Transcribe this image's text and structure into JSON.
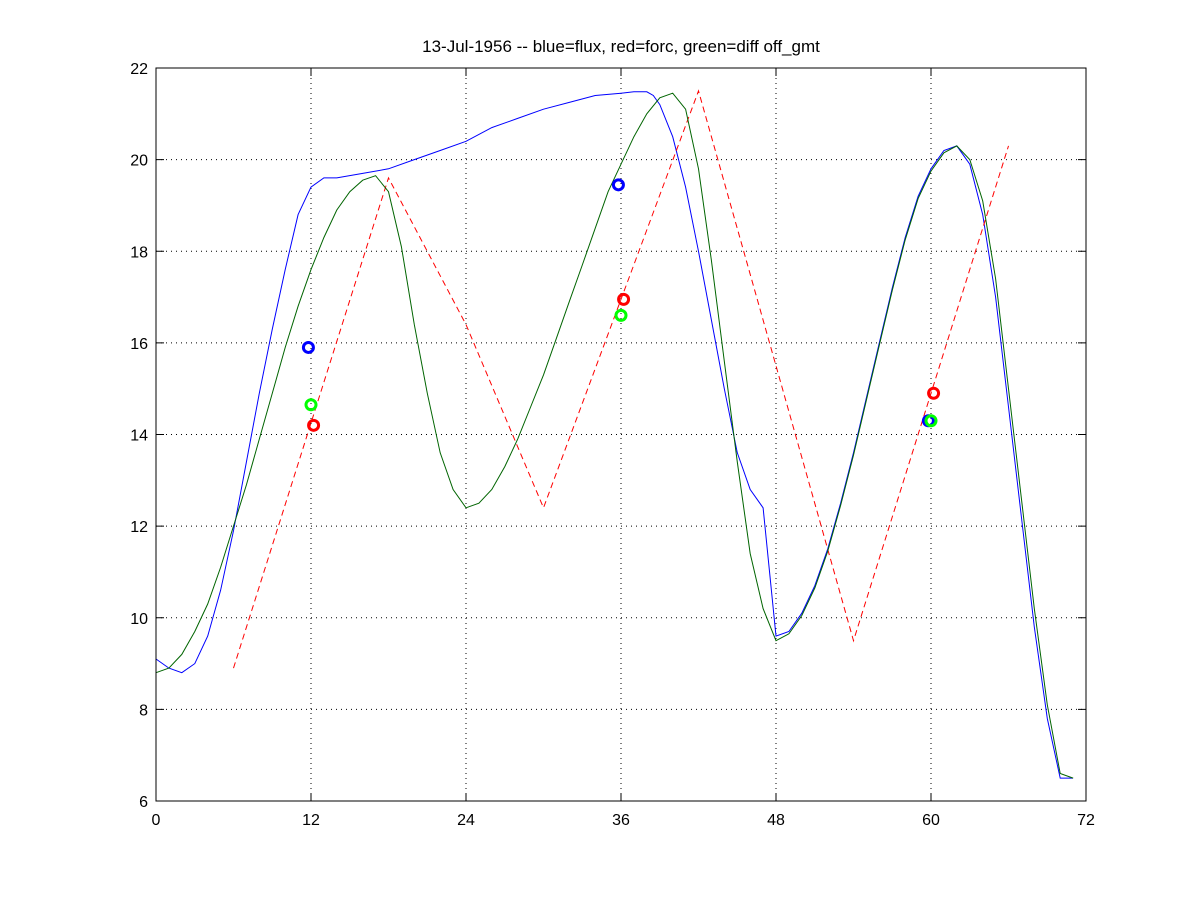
{
  "chart_data": {
    "type": "line",
    "title": "13-Jul-1956 -- blue=flux, red=forc, green=diff off_gmt",
    "xlabel": "",
    "ylabel": "",
    "xlim": [
      0,
      72
    ],
    "ylim": [
      6,
      22
    ],
    "xticks": [
      0,
      12,
      24,
      36,
      48,
      60,
      72
    ],
    "yticks": [
      6,
      8,
      10,
      12,
      14,
      16,
      18,
      20,
      22
    ],
    "grid": true,
    "series": [
      {
        "color": "#0000ff",
        "style": "solid",
        "x": [
          0,
          1,
          2,
          3,
          4,
          5,
          6,
          7,
          8,
          9,
          10,
          11,
          12,
          13,
          14,
          16,
          18,
          20,
          22,
          24,
          26,
          28,
          30,
          32,
          34,
          36,
          37,
          38,
          38.5,
          39,
          40,
          41,
          42,
          43,
          44,
          45,
          46,
          47,
          48,
          49,
          50,
          51,
          52,
          53,
          54,
          55,
          56,
          57,
          58,
          59,
          60,
          61,
          62,
          63,
          64,
          65,
          66,
          67,
          68,
          69,
          70,
          71
        ],
        "y": [
          9.1,
          8.9,
          8.8,
          9.0,
          9.6,
          10.6,
          11.9,
          13.4,
          14.9,
          16.3,
          17.6,
          18.8,
          19.4,
          19.6,
          19.6,
          19.7,
          19.8,
          20.0,
          20.2,
          20.4,
          20.7,
          20.9,
          21.1,
          21.25,
          21.4,
          21.45,
          21.48,
          21.48,
          21.4,
          21.2,
          20.5,
          19.4,
          18.0,
          16.5,
          15.0,
          13.6,
          12.8,
          12.4,
          9.6,
          9.7,
          10.1,
          10.7,
          11.5,
          12.5,
          13.6,
          14.8,
          16.0,
          17.2,
          18.3,
          19.2,
          19.8,
          20.2,
          20.3,
          19.9,
          18.8,
          17.0,
          14.6,
          12.2,
          9.8,
          7.8,
          6.5,
          6.5
        ]
      },
      {
        "color": "#ff0000",
        "style": "dashed",
        "x": [
          6,
          18,
          24,
          30,
          42,
          48,
          54,
          66
        ],
        "y": [
          8.9,
          19.6,
          16.4,
          12.4,
          21.5,
          15.5,
          9.5,
          20.3
        ]
      },
      {
        "color": "#006400",
        "style": "solid",
        "x": [
          0,
          1,
          2,
          3,
          4,
          5,
          6,
          7,
          8,
          9,
          10,
          11,
          12,
          13,
          14,
          15,
          16,
          17,
          18,
          19,
          20,
          21,
          22,
          23,
          24,
          25,
          26,
          27,
          28,
          29,
          30,
          31,
          32,
          33,
          34,
          35,
          36,
          37,
          38,
          39,
          40,
          41,
          42,
          43,
          44,
          45,
          46,
          47,
          48,
          49,
          50,
          51,
          52,
          53,
          54,
          55,
          56,
          57,
          58,
          59,
          60,
          61,
          62,
          63,
          64,
          65,
          66,
          67,
          68,
          69,
          70,
          71
        ],
        "y": [
          8.8,
          8.9,
          9.2,
          9.7,
          10.3,
          11.1,
          12.0,
          12.9,
          13.9,
          14.9,
          15.9,
          16.8,
          17.6,
          18.3,
          18.9,
          19.3,
          19.55,
          19.65,
          19.3,
          18.1,
          16.4,
          14.9,
          13.6,
          12.8,
          12.4,
          12.5,
          12.8,
          13.3,
          13.9,
          14.6,
          15.3,
          16.1,
          16.9,
          17.7,
          18.5,
          19.3,
          19.9,
          20.5,
          21.0,
          21.35,
          21.45,
          21.1,
          19.8,
          17.8,
          15.6,
          13.4,
          11.4,
          10.2,
          9.5,
          9.65,
          10.05,
          10.65,
          11.45,
          12.45,
          13.55,
          14.75,
          15.95,
          17.15,
          18.25,
          19.15,
          19.75,
          20.15,
          20.3,
          20.0,
          19.1,
          17.4,
          15.0,
          12.6,
          10.2,
          8.1,
          6.6,
          6.5
        ]
      }
    ],
    "markers": [
      {
        "x": 11.8,
        "y": 15.9,
        "color": "#0000ff"
      },
      {
        "x": 12.0,
        "y": 14.65,
        "color": "#00ff00"
      },
      {
        "x": 12.2,
        "y": 14.2,
        "color": "#ff0000"
      },
      {
        "x": 35.8,
        "y": 19.45,
        "color": "#0000ff"
      },
      {
        "x": 36.2,
        "y": 16.95,
        "color": "#ff0000"
      },
      {
        "x": 36.0,
        "y": 16.6,
        "color": "#00ff00"
      },
      {
        "x": 59.8,
        "y": 14.3,
        "color": "#0000ff"
      },
      {
        "x": 60.2,
        "y": 14.9,
        "color": "#ff0000"
      },
      {
        "x": 60.0,
        "y": 14.3,
        "color": "#00ff00"
      }
    ]
  }
}
